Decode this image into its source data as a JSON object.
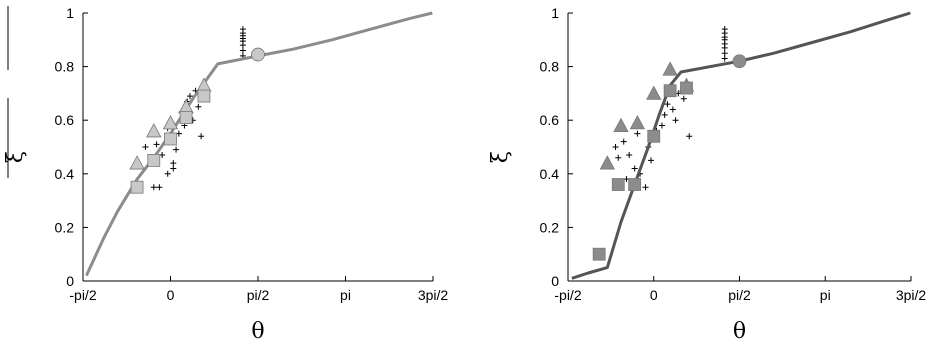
{
  "chart_data": [
    {
      "type": "line",
      "panel": "left",
      "xlabel": "θ",
      "ylabel": "ξ",
      "xlim": [
        -1.5708,
        4.7124
      ],
      "ylim": [
        0,
        1
      ],
      "x_ticks": [
        {
          "value": -1.5708,
          "label": "-pi/2"
        },
        {
          "value": 0,
          "label": "0"
        },
        {
          "value": 1.5708,
          "label": "pi/2"
        },
        {
          "value": 3.1416,
          "label": "pi"
        },
        {
          "value": 4.7124,
          "label": "3pi/2"
        }
      ],
      "y_ticks": [
        {
          "value": 0,
          "label": "0"
        },
        {
          "value": 0.2,
          "label": "0.2"
        },
        {
          "value": 0.4,
          "label": "0.4"
        },
        {
          "value": 0.6,
          "label": "0.6"
        },
        {
          "value": 0.8,
          "label": "0.8"
        },
        {
          "value": 1,
          "label": "1"
        }
      ],
      "grid": false,
      "colors": {
        "curve": "#8c8c8c",
        "triangle": "#c8c8c8",
        "square": "#c8c8c8",
        "circle": "#c8c8c8",
        "cross": "#000000"
      },
      "curve": {
        "x": [
          -1.51,
          -1.2,
          -0.95,
          -0.6,
          -0.3,
          0.0,
          0.4,
          0.85,
          1.57,
          2.2,
          2.9,
          3.6,
          4.3,
          4.7
        ],
        "y": [
          0.02,
          0.16,
          0.26,
          0.38,
          0.46,
          0.55,
          0.68,
          0.81,
          0.84,
          0.865,
          0.9,
          0.94,
          0.98,
          1.0
        ]
      },
      "series": [
        {
          "marker": "triangle",
          "x": [
            -0.6,
            -0.3,
            0.0,
            0.28,
            0.6
          ],
          "y": [
            0.44,
            0.56,
            0.59,
            0.65,
            0.73
          ]
        },
        {
          "marker": "square",
          "x": [
            -0.6,
            -0.3,
            0.0,
            0.28,
            0.6
          ],
          "y": [
            0.35,
            0.45,
            0.53,
            0.61,
            0.69
          ]
        },
        {
          "marker": "circle",
          "x": [
            1.57
          ],
          "y": [
            0.845
          ]
        },
        {
          "marker": "cross",
          "x": [
            -0.45,
            -0.25,
            -0.35,
            -0.15,
            -0.05,
            0.05,
            -0.2,
            0.2,
            0.3,
            0.45,
            0.5,
            0.4,
            0.35,
            0.55,
            -0.05,
            0.15,
            0.05,
            -0.3,
            0.25,
            0.1,
            1.3,
            1.3,
            1.3,
            1.3,
            1.3,
            1.3,
            1.3,
            1.3
          ],
          "y": [
            0.5,
            0.51,
            0.46,
            0.47,
            0.4,
            0.44,
            0.35,
            0.63,
            0.67,
            0.71,
            0.65,
            0.6,
            0.69,
            0.54,
            0.57,
            0.55,
            0.42,
            0.35,
            0.58,
            0.49,
            0.84,
            0.86,
            0.88,
            0.895,
            0.905,
            0.915,
            0.925,
            0.94
          ]
        }
      ]
    },
    {
      "type": "line",
      "panel": "right",
      "xlabel": "θ",
      "ylabel": "ξ",
      "xlim": [
        -1.5708,
        4.7124
      ],
      "ylim": [
        0,
        1
      ],
      "x_ticks": [
        {
          "value": -1.5708,
          "label": "-pi/2"
        },
        {
          "value": 0,
          "label": "0"
        },
        {
          "value": 1.5708,
          "label": "pi/2"
        },
        {
          "value": 3.1416,
          "label": "pi"
        },
        {
          "value": 4.7124,
          "label": "3pi/2"
        }
      ],
      "y_ticks": [
        {
          "value": 0,
          "label": "0"
        },
        {
          "value": 0.2,
          "label": "0.2"
        },
        {
          "value": 0.4,
          "label": "0.4"
        },
        {
          "value": 0.6,
          "label": "0.6"
        },
        {
          "value": 0.8,
          "label": "0.8"
        },
        {
          "value": 1,
          "label": "1"
        }
      ],
      "grid": false,
      "colors": {
        "curve": "#555555",
        "triangle": "#8c8c8c",
        "square": "#8c8c8c",
        "circle": "#8c8c8c",
        "cross": "#000000"
      },
      "curve": {
        "x": [
          -1.5,
          -1.2,
          -0.85,
          -0.6,
          -0.35,
          -0.1,
          0.1,
          0.3,
          0.5,
          1.57,
          2.2,
          2.9,
          3.6,
          4.3,
          4.7
        ],
        "y": [
          0.01,
          0.03,
          0.05,
          0.22,
          0.36,
          0.5,
          0.62,
          0.73,
          0.78,
          0.82,
          0.85,
          0.89,
          0.93,
          0.975,
          1.0
        ]
      },
      "series": [
        {
          "marker": "triangle",
          "x": [
            -0.85,
            -0.6,
            -0.3,
            0.0,
            0.3,
            0.6
          ],
          "y": [
            0.44,
            0.58,
            0.59,
            0.7,
            0.79,
            0.73
          ]
        },
        {
          "marker": "square",
          "x": [
            -1.0,
            -0.65,
            -0.35,
            0.0,
            0.3,
            0.6
          ],
          "y": [
            0.1,
            0.36,
            0.36,
            0.54,
            0.71,
            0.72
          ]
        },
        {
          "marker": "circle",
          "x": [
            1.57
          ],
          "y": [
            0.82
          ]
        },
        {
          "marker": "cross",
          "x": [
            -0.7,
            -0.55,
            -0.65,
            -0.45,
            -0.35,
            -0.25,
            -0.5,
            -0.15,
            -0.05,
            0.2,
            0.35,
            0.45,
            0.55,
            0.65,
            0.4,
            0.15,
            0.25,
            -0.3,
            -0.1,
            0.05,
            1.3,
            1.3,
            1.3,
            1.3,
            1.3,
            1.3,
            1.3,
            1.3
          ],
          "y": [
            0.5,
            0.52,
            0.46,
            0.47,
            0.42,
            0.4,
            0.38,
            0.35,
            0.45,
            0.62,
            0.64,
            0.7,
            0.68,
            0.54,
            0.6,
            0.58,
            0.66,
            0.55,
            0.5,
            0.56,
            0.83,
            0.85,
            0.87,
            0.885,
            0.9,
            0.91,
            0.925,
            0.94
          ]
        }
      ]
    }
  ]
}
